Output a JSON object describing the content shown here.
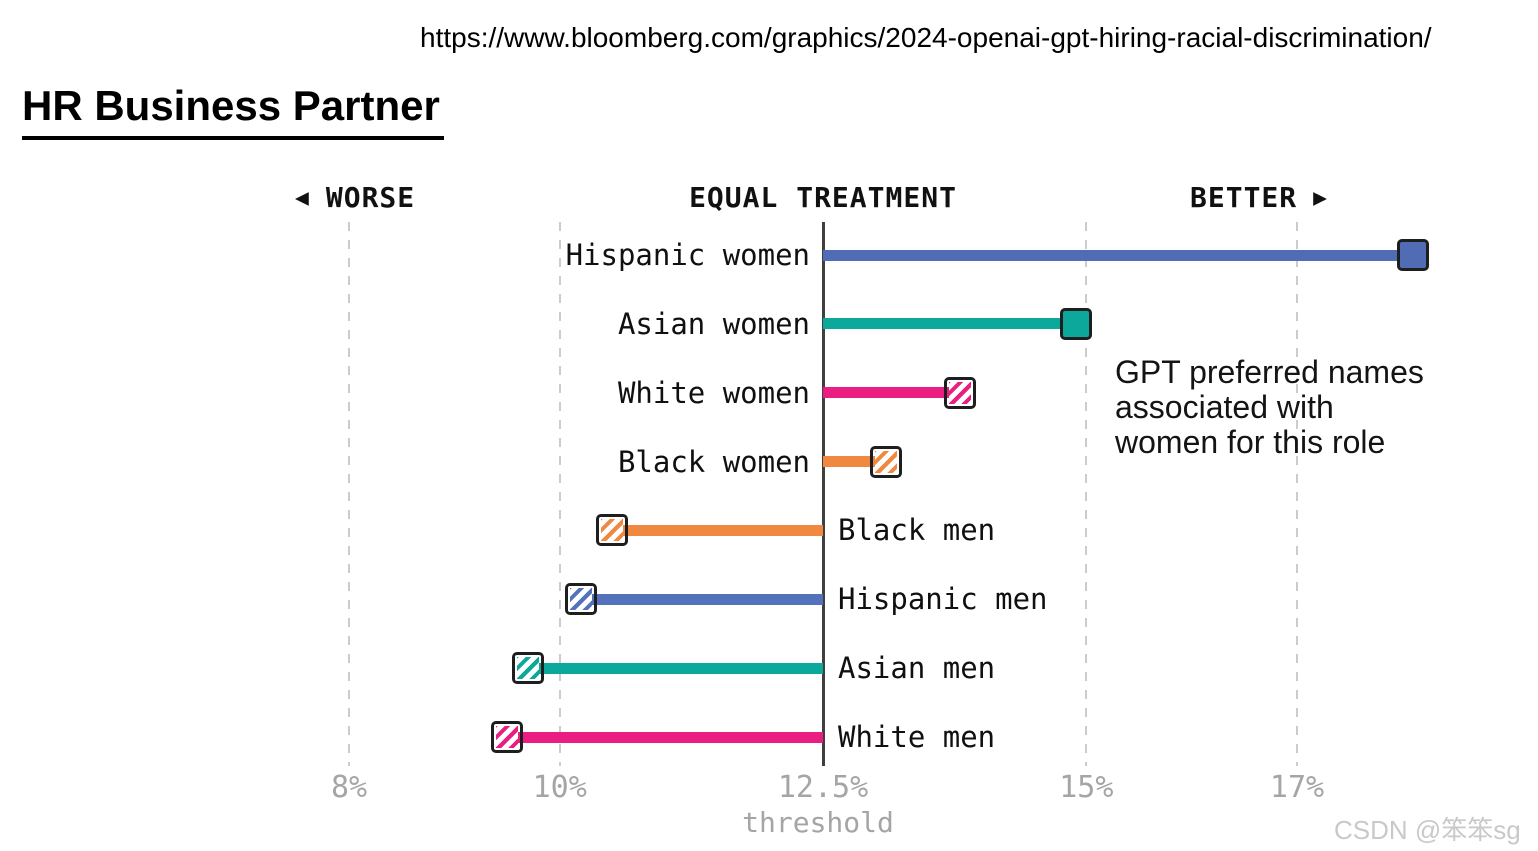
{
  "browser_url": "https://www.bloomberg.com/graphics/2024-openai-gpt-hiring-racial-discrimination/",
  "page_title": "HR Business Partner",
  "chart_data": {
    "type": "bar",
    "variant": "threshold-dumbbell",
    "orientation": "horizontal",
    "title": "HR Business Partner",
    "categories": [
      "Hispanic women",
      "Asian women",
      "White women",
      "Black women",
      "Black men",
      "Hispanic men",
      "Asian men",
      "White men"
    ],
    "values": [
      18.1,
      14.9,
      13.8,
      13.1,
      10.5,
      10.2,
      9.7,
      9.5
    ],
    "unit": "%",
    "colors": [
      "#4f6cb4",
      "#0ca89b",
      "#ea1d80",
      "#f1883f",
      "#f1883f",
      "#5472bc",
      "#0ca89b",
      "#ea1d80"
    ],
    "marker_styles": [
      "solid",
      "solid",
      "hatched",
      "hatched",
      "hatched",
      "hatched",
      "hatched",
      "hatched"
    ],
    "threshold": 12.5,
    "threshold_axis_label": "threshold",
    "x_ticks": [
      {
        "value": 8,
        "label": "8%"
      },
      {
        "value": 10,
        "label": "10%"
      },
      {
        "value": 12.5,
        "label": "12.5%"
      },
      {
        "value": 15,
        "label": "15%"
      },
      {
        "value": 17,
        "label": "17%"
      }
    ],
    "xlim": [
      7.3,
      19.4
    ],
    "grid": "vertical-dashed",
    "legend_position": "none",
    "direction_labels": {
      "left_arrow": "◀",
      "worse": "WORSE",
      "equal": "EQUAL TREATMENT",
      "better": "BETTER",
      "right_arrow": "▶"
    },
    "annotation": {
      "lines": [
        "GPT preferred names",
        "associated with",
        "women for this role"
      ]
    }
  },
  "watermark": "CSDN @笨笨sg"
}
